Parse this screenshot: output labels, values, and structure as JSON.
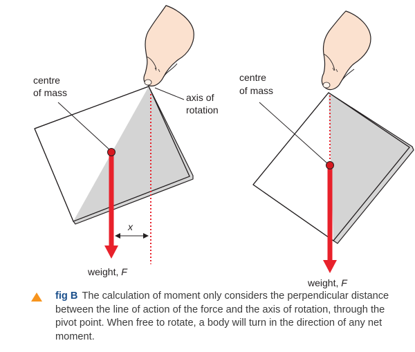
{
  "left_diagram": {
    "centre_label_1": "centre",
    "centre_label_2": "of mass",
    "axis_label_1": "axis of",
    "axis_label_2": "rotation",
    "distance_label": "x",
    "weight_label": "weight, ",
    "weight_symbol": "F"
  },
  "right_diagram": {
    "centre_label_1": "centre",
    "centre_label_2": "of mass",
    "weight_label": "weight, ",
    "weight_symbol": "F"
  },
  "caption": {
    "label": "fig B",
    "text": "The calculation of moment only considers the perpendicular distance between the line of action of the force and the axis of rotation, through the pivot point. When free to rotate, a body will turn in the direction of any net moment."
  },
  "colors": {
    "force_arrow": "#e8212b",
    "centre_dot": "#d71920",
    "shaded_region": "#d4d4d4",
    "caption_marker": "#f7941d",
    "caption_label": "#1a4f8b"
  }
}
